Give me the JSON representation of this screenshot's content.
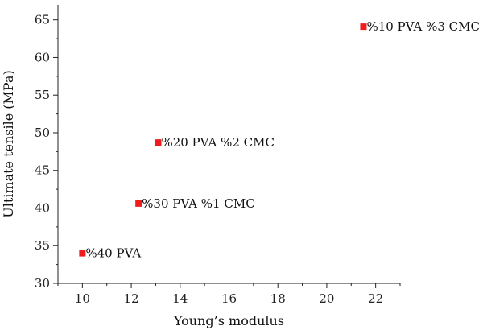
{
  "chart_data": {
    "type": "scatter",
    "xlabel": "Young’s modulus",
    "ylabel": "Ultimate tensile (MPa)",
    "xlim": [
      9,
      23
    ],
    "ylim": [
      30,
      67
    ],
    "xticks": [
      10,
      12,
      14,
      16,
      18,
      20,
      22
    ],
    "yticks": [
      30,
      35,
      40,
      45,
      50,
      55,
      60,
      65
    ],
    "grid": false,
    "marker": "square",
    "marker_color": "#ee1c1c",
    "points": [
      {
        "x": 10.0,
        "y": 34.0,
        "label": "%40 PVA"
      },
      {
        "x": 12.3,
        "y": 40.6,
        "label": "%30 PVA %1 CMC"
      },
      {
        "x": 13.1,
        "y": 48.7,
        "label": "%20 PVA %2 CMC"
      },
      {
        "x": 21.5,
        "y": 64.1,
        "label": "%10 PVA %3 CMC"
      }
    ]
  }
}
